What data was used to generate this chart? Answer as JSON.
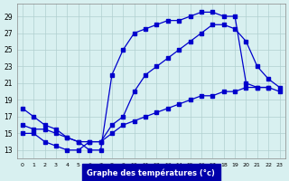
{
  "xlabel": "Graphe des températures (°c)",
  "background_color": "#d8f0f0",
  "line_color": "#0000cc",
  "grid_color": "#b0d0d0",
  "yticks": [
    13,
    15,
    17,
    19,
    21,
    23,
    25,
    27,
    29
  ],
  "xticks": [
    0,
    1,
    2,
    3,
    4,
    5,
    6,
    7,
    8,
    9,
    10,
    11,
    12,
    13,
    14,
    15,
    16,
    17,
    18,
    19,
    20,
    21,
    22,
    23
  ],
  "line1_x": [
    0,
    1,
    2,
    3,
    4,
    5,
    6,
    7,
    8,
    9,
    10,
    11,
    12,
    13,
    14,
    15,
    16,
    17,
    18,
    19,
    20,
    21,
    22
  ],
  "line1_y": [
    18,
    17,
    16,
    15.5,
    14.5,
    14,
    13,
    13,
    22,
    25,
    27,
    27.5,
    28,
    28.5,
    28.5,
    29,
    29.5,
    29.5,
    29,
    29,
    21,
    20.5,
    20.5
  ],
  "line2_x": [
    0,
    1,
    2,
    3,
    4,
    5,
    6,
    7,
    8,
    9,
    10,
    11,
    12,
    13,
    14,
    15,
    16,
    17,
    18,
    19,
    20,
    21,
    22,
    23
  ],
  "line2_y": [
    15,
    15,
    14,
    13.5,
    13,
    13,
    14,
    14,
    16,
    17,
    20,
    22,
    23,
    24,
    25,
    26,
    27,
    28,
    28,
    27.5,
    26,
    23,
    21.5,
    20.5
  ],
  "line3_x": [
    0,
    1,
    2,
    3,
    4,
    5,
    6,
    7,
    8,
    9,
    10,
    11,
    12,
    13,
    14,
    15,
    16,
    17,
    18,
    19,
    20,
    21,
    22,
    23
  ],
  "line3_y": [
    16,
    15.5,
    15.5,
    15,
    14.5,
    14,
    14,
    14,
    15,
    16,
    16.5,
    17,
    17.5,
    18,
    18.5,
    19,
    19.5,
    19.5,
    20,
    20,
    20.5,
    20.5,
    20.5,
    20
  ]
}
